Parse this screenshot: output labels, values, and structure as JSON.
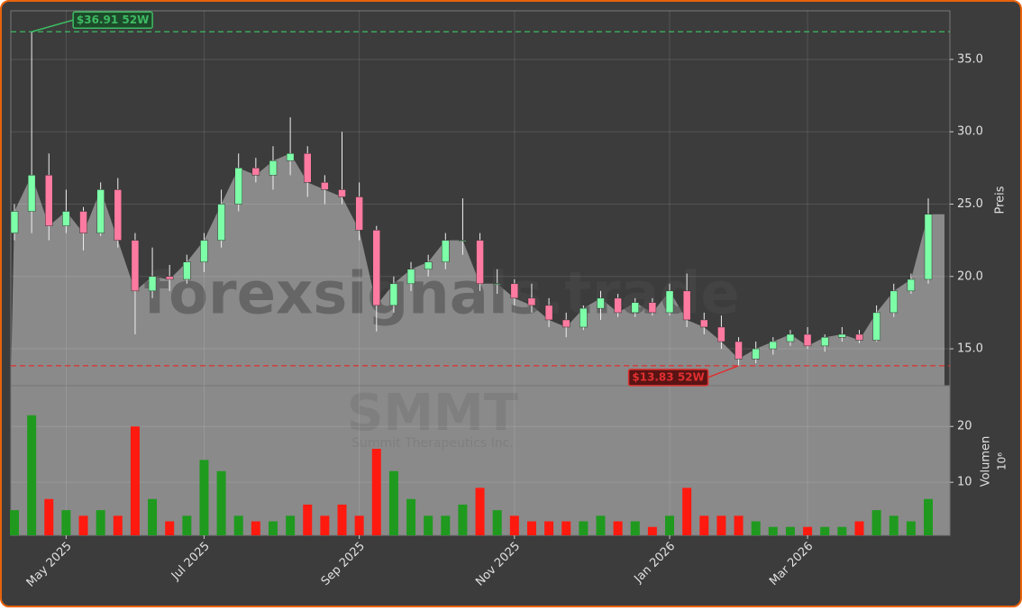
{
  "chart_data": [
    {
      "type": "candlestick",
      "watermark": "forexsignals.trade",
      "ylabel": "Preis",
      "categories": [
        null,
        null,
        null,
        "May 2025",
        null,
        null,
        null,
        null,
        null,
        null,
        null,
        "Jul 2025",
        null,
        null,
        null,
        null,
        null,
        null,
        null,
        null,
        "Sep 2025",
        null,
        null,
        null,
        null,
        null,
        null,
        null,
        null,
        "Nov 2025",
        null,
        null,
        null,
        null,
        null,
        null,
        null,
        null,
        "Jan 2026",
        null,
        null,
        null,
        null,
        null,
        null,
        null,
        "Mar 2026",
        null,
        null,
        null,
        null,
        null,
        null,
        null
      ],
      "open": [
        23,
        24.5,
        27,
        23.5,
        24.5,
        23,
        26,
        22.5,
        19,
        20,
        19.8,
        21,
        22.5,
        25,
        27.5,
        27,
        28,
        28.5,
        26.5,
        26,
        25.5,
        23.2,
        18,
        19.5,
        20.5,
        21,
        22.5,
        22.5,
        19.5,
        19.5,
        18.5,
        18,
        17,
        16.5,
        17.8,
        18.5,
        17.5,
        18.2,
        17.5,
        19,
        17,
        16.5,
        15.5,
        14.3,
        15,
        15.5,
        16,
        15.2,
        15.8,
        16,
        15.6,
        17.5,
        19,
        19.8
      ],
      "high": [
        25,
        36.91,
        28.5,
        26,
        24.8,
        26.5,
        26.8,
        23,
        22,
        20.8,
        21.5,
        23,
        26,
        28.5,
        28.2,
        29,
        31,
        29,
        27,
        30,
        26.5,
        23.5,
        20,
        21,
        21.5,
        23,
        25.4,
        23,
        20.5,
        19.8,
        19.5,
        18.5,
        17.5,
        18,
        19,
        18.8,
        18.5,
        18.5,
        19.5,
        20.2,
        17.5,
        17.3,
        15.8,
        15.5,
        15.8,
        16.3,
        16.5,
        16,
        16.5,
        16.3,
        18,
        19.5,
        20.2,
        25.4
      ],
      "low": [
        22.5,
        23,
        22.5,
        23,
        21.8,
        22.8,
        22,
        16,
        18.5,
        19,
        19.5,
        20.3,
        22,
        24.5,
        26.5,
        26,
        27,
        25.5,
        25,
        25,
        22.5,
        16.2,
        17.5,
        19,
        20,
        20.5,
        21.5,
        19,
        18.8,
        18,
        17.5,
        16.5,
        15.8,
        16.3,
        17,
        17.2,
        17.2,
        17.3,
        17.3,
        16.5,
        16,
        15,
        13.83,
        14,
        14.6,
        15.2,
        15,
        14.8,
        15.5,
        15.4,
        15.5,
        17.2,
        18.8,
        19.5
      ],
      "close": [
        24.5,
        27,
        23.5,
        24.5,
        23,
        26,
        22.5,
        19,
        20,
        19.8,
        21,
        22.5,
        25,
        27.5,
        27,
        28,
        28.5,
        26.5,
        26,
        25.5,
        23.2,
        18,
        19.5,
        20.5,
        21,
        22.5,
        22.5,
        19.5,
        19.5,
        18.5,
        18,
        17,
        16.5,
        17.8,
        18.5,
        17.5,
        18.2,
        17.5,
        19,
        17,
        16.5,
        15.5,
        14.3,
        15,
        15.5,
        16,
        15.2,
        15.8,
        16,
        15.6,
        17.5,
        19,
        19.8,
        24.3
      ],
      "up_color": "#7dffa8",
      "down_color": "#ff7aa0",
      "area_color": "#8a8a8a",
      "ylim": [
        12.45,
        38.36
      ],
      "yticks": [
        {
          "value": 15,
          "label": "15.0"
        },
        {
          "value": 20,
          "label": "20.0"
        },
        {
          "value": 25,
          "label": "25.0"
        },
        {
          "value": 30,
          "label": "30.0"
        },
        {
          "value": 35,
          "label": "35.0"
        }
      ],
      "grid": true,
      "annotations": [
        {
          "value": 36.91,
          "label": "$36.91 52W",
          "color": "#3dbb62",
          "at": 1
        },
        {
          "value": 13.83,
          "label": "$13.83 52W",
          "color": "#e03030",
          "at": 42
        }
      ]
    },
    {
      "type": "bar",
      "title": "SMMT",
      "subtitle": "Summit Therapeutics Inc.",
      "ylabel": "Volumen",
      "multiplier": "10⁶",
      "values": [
        5,
        22,
        7,
        5,
        4,
        5,
        4,
        20,
        7,
        3,
        4,
        14,
        12,
        4,
        3,
        3,
        4,
        6,
        4,
        6,
        4,
        16,
        12,
        7,
        4,
        4,
        6,
        9,
        5,
        4,
        3,
        3,
        3,
        3,
        4,
        3,
        3,
        2,
        4,
        9,
        4,
        4,
        4,
        3,
        2,
        2,
        2,
        2,
        2,
        3,
        5,
        4,
        3,
        7
      ],
      "up_color": "#1f9a1f",
      "down_color": "#ff1a10",
      "ylim": [
        0.5,
        27.3
      ],
      "yticks": [
        10,
        20
      ],
      "grid": true
    }
  ]
}
